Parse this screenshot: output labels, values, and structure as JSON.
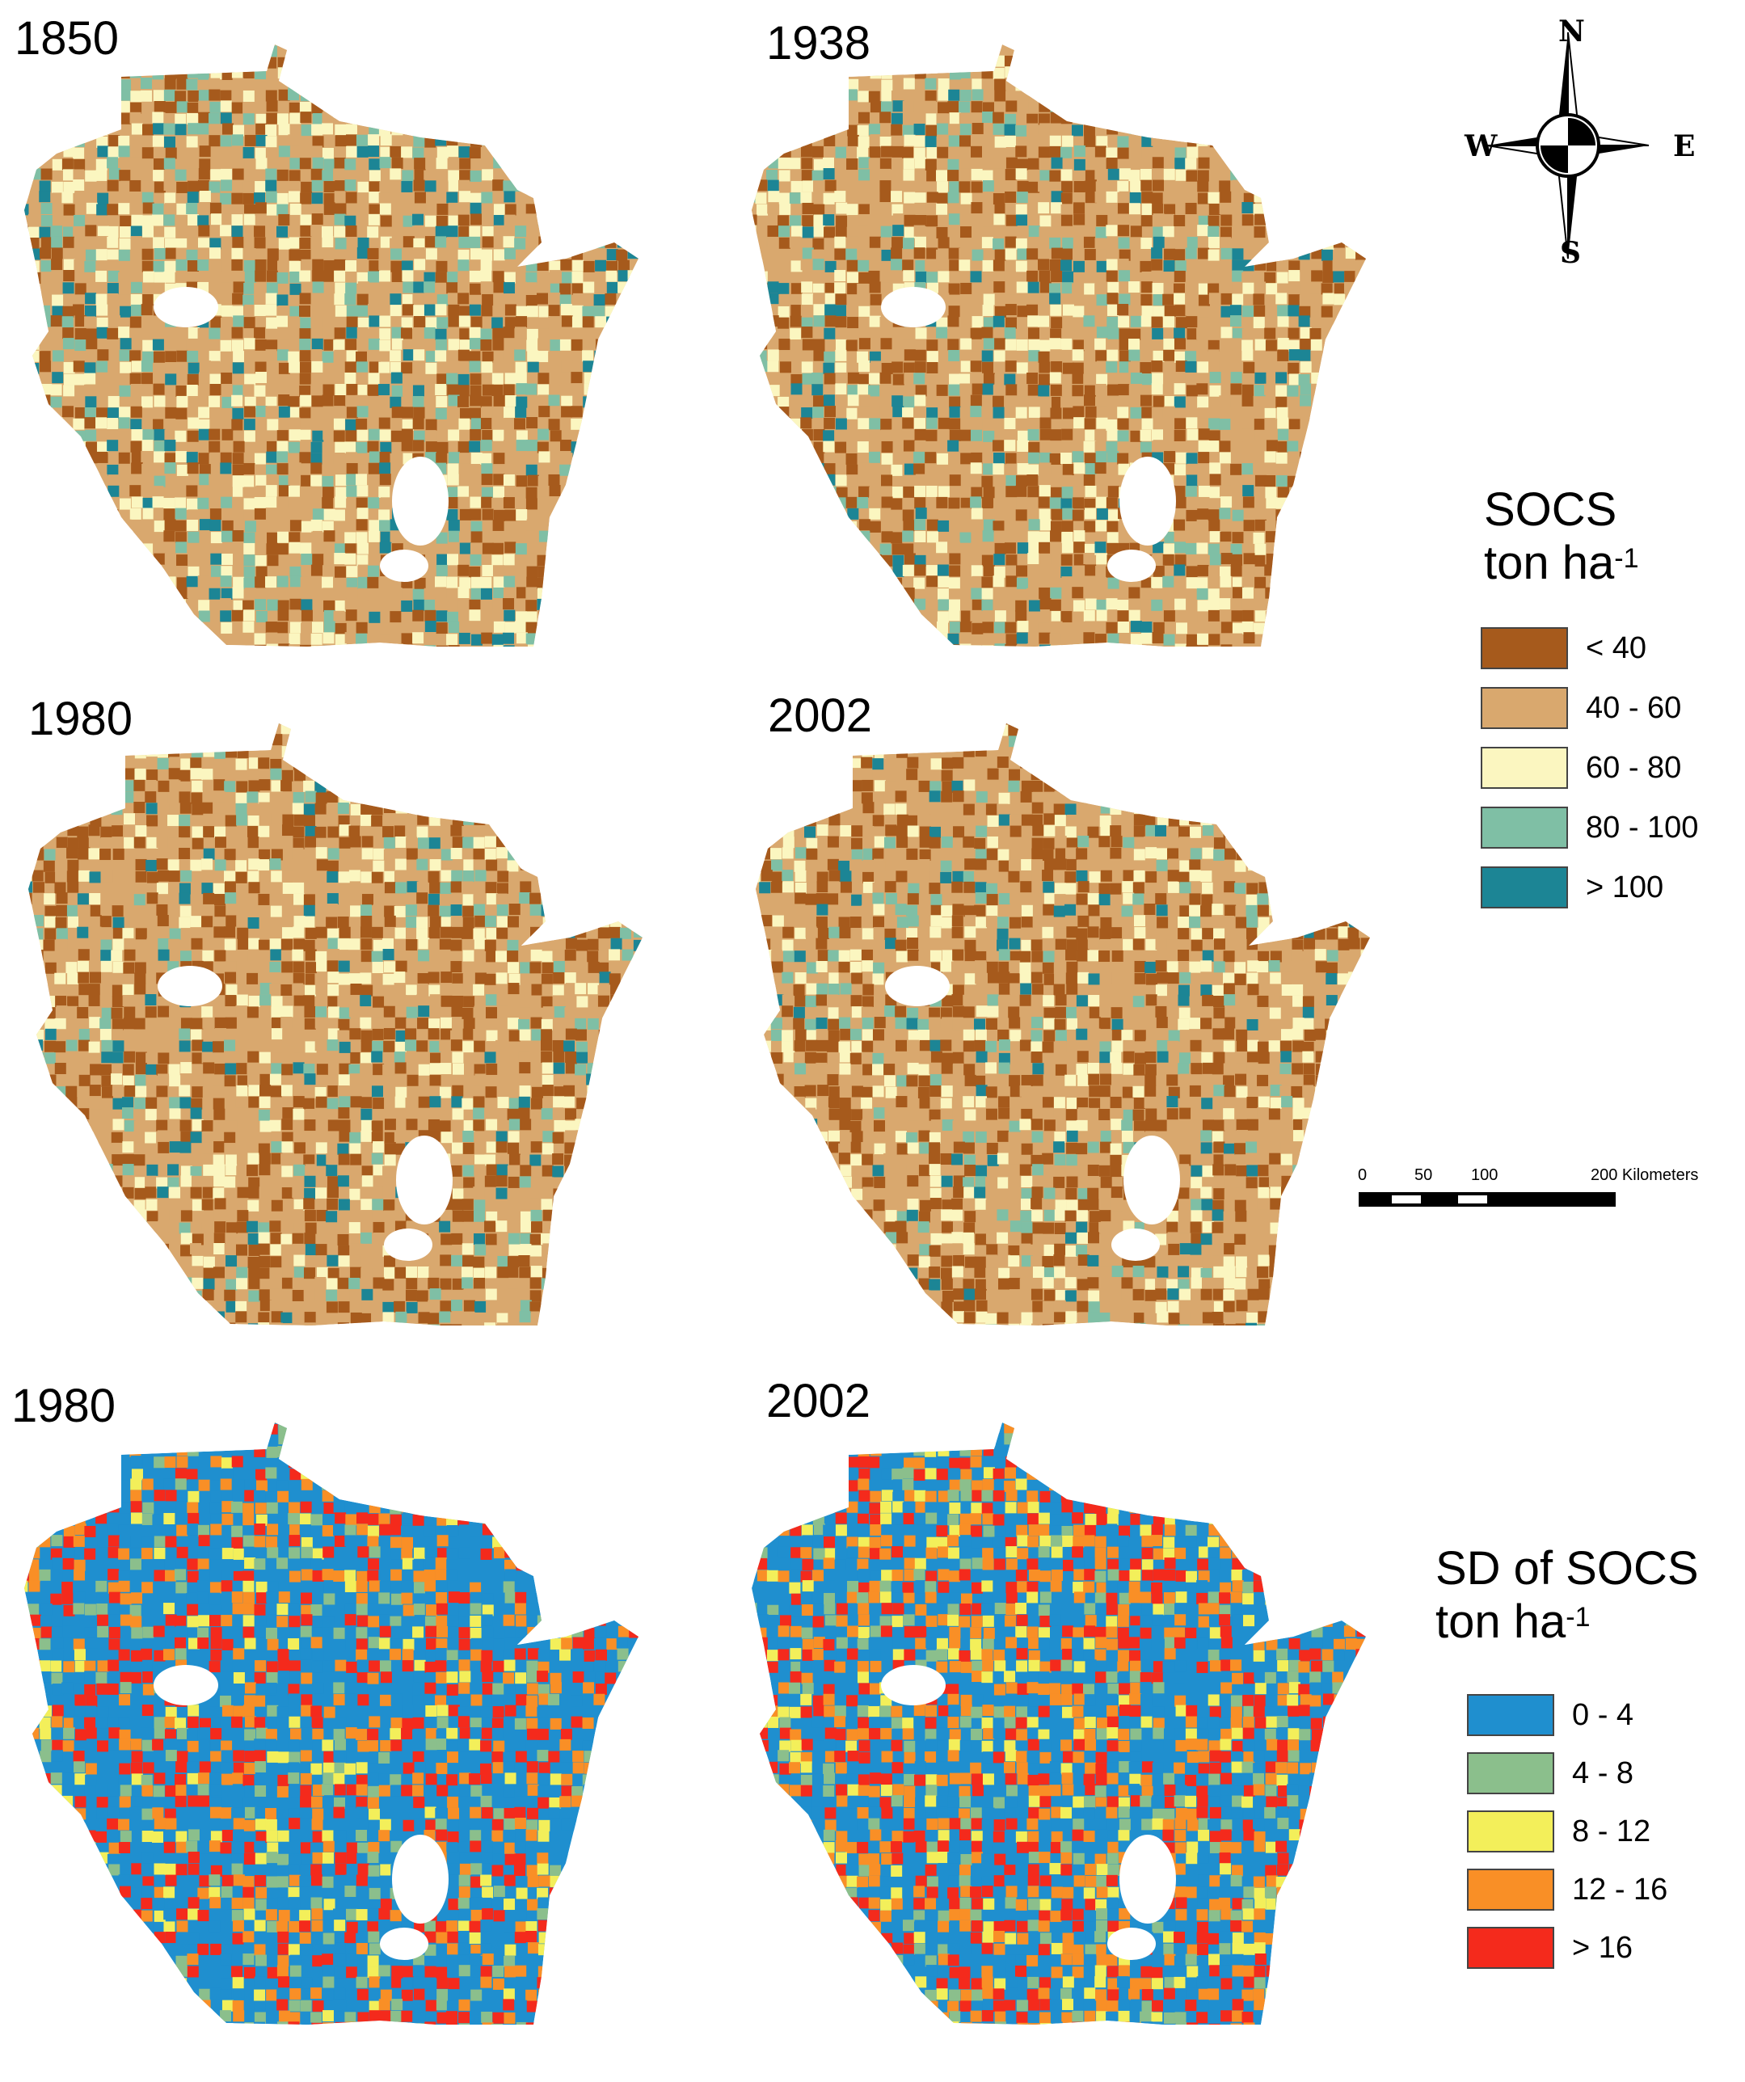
{
  "panels": [
    {
      "label": "1850",
      "legend": "socs",
      "mix": [
        0.22,
        0.4,
        0.2,
        0.11,
        0.07
      ]
    },
    {
      "label": "1938",
      "legend": "socs",
      "mix": [
        0.24,
        0.45,
        0.17,
        0.09,
        0.05
      ]
    },
    {
      "label": "1980",
      "legend": "socs",
      "mix": [
        0.26,
        0.47,
        0.15,
        0.08,
        0.04
      ]
    },
    {
      "label": "2002",
      "legend": "socs",
      "mix": [
        0.27,
        0.46,
        0.15,
        0.08,
        0.04
      ]
    },
    {
      "label": "1980",
      "legend": "sd",
      "mix": [
        0.52,
        0.1,
        0.07,
        0.14,
        0.17
      ]
    },
    {
      "label": "2002",
      "legend": "sd",
      "mix": [
        0.42,
        0.1,
        0.1,
        0.2,
        0.18
      ]
    }
  ],
  "compass": {
    "n": "N",
    "s": "S",
    "e": "E",
    "w": "W"
  },
  "scale_bar": {
    "ticks": [
      "0",
      "50",
      "100",
      "200 Kilometers"
    ]
  },
  "legend_socs": {
    "title_line1": "SOCS",
    "title_line2": "ton ha",
    "title_sup": "-1",
    "classes": [
      {
        "label": "< 40",
        "color": "#a65a1c"
      },
      {
        "label": "40 - 60",
        "color": "#d9a86e"
      },
      {
        "label": "60 - 80",
        "color": "#fbf6c0"
      },
      {
        "label": "80 - 100",
        "color": "#7fbfa5"
      },
      {
        "label": "> 100",
        "color": "#1c8595"
      }
    ]
  },
  "legend_sd": {
    "title_line1": "SD of SOCS",
    "title_line2": "ton ha",
    "title_sup": "-1",
    "classes": [
      {
        "label": "0 - 4",
        "color": "#1f8fcf"
      },
      {
        "label": "4 - 8",
        "color": "#8bbf8c"
      },
      {
        "label": "8 - 12",
        "color": "#f3ef5a"
      },
      {
        "label": "12 - 16",
        "color": "#f98f26"
      },
      {
        "label": "> 16",
        "color": "#f42a1c"
      }
    ]
  }
}
